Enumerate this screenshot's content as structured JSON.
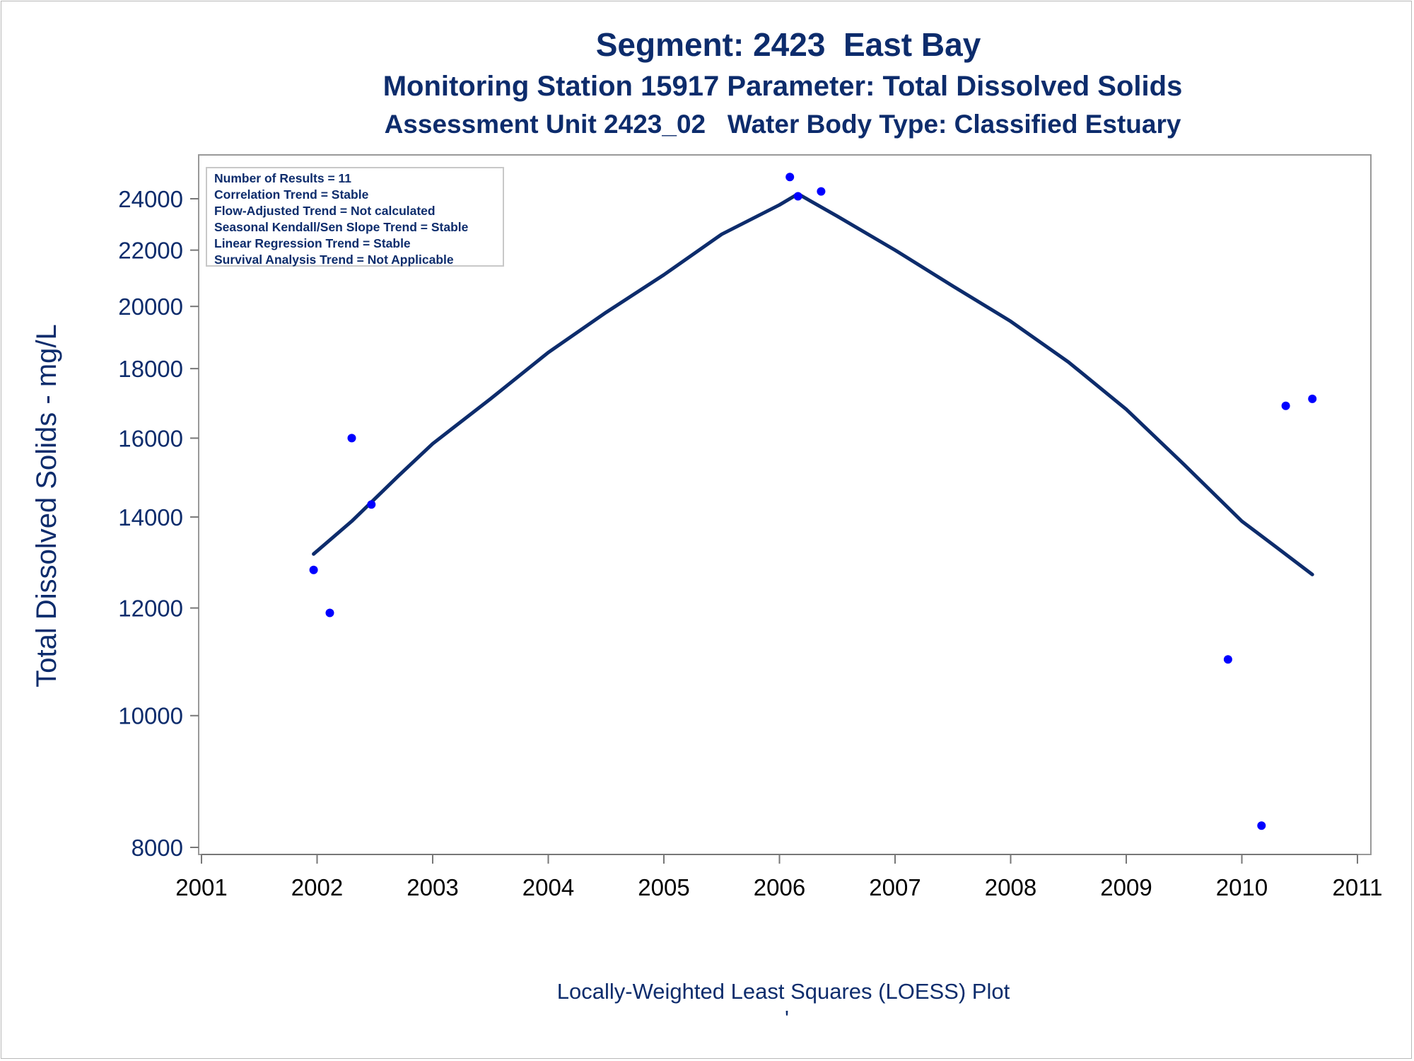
{
  "titles": {
    "line1": "Segment: 2423  East Bay",
    "line2": "Monitoring Station 15917 Parameter: Total Dissolved Solids",
    "line3": "Assessment Unit 2423_02   Water Body Type: Classified Estuary"
  },
  "stats": [
    "Number of Results = 11",
    "Correlation Trend = Stable",
    "Flow-Adjusted Trend = Not calculated",
    "Seasonal Kendall/Sen Slope Trend = Stable",
    "Linear Regression Trend = Stable",
    "Survival Analysis Trend = Not Applicable"
  ],
  "footnote": "Locally-Weighted Least Squares (LOESS) Plot",
  "footnote_mark": "'",
  "colors": {
    "text": "#0d2c6c",
    "points": "#0000ff",
    "loess_line": "#0d2c6c",
    "frame": "#999999"
  },
  "chart_data": {
    "type": "scatter",
    "ylabel": "Total Dissolved Solids - mg/L",
    "xlabel": "",
    "yscale": "log",
    "xlim": [
      2001,
      2011
    ],
    "ylim": [
      7800,
      25500
    ],
    "x_ticks": [
      "2001",
      "2002",
      "2003",
      "2004",
      "2005",
      "2006",
      "2007",
      "2008",
      "2009",
      "2010",
      "2011"
    ],
    "y_ticks": [
      "8000",
      "10000",
      "12000",
      "14000",
      "16000",
      "18000",
      "20000",
      "22000",
      "24000"
    ],
    "series": [
      {
        "kind": "points",
        "x": [
          2001.97,
          2002.11,
          2002.3,
          2002.47,
          2006.09,
          2006.16,
          2006.36,
          2009.88,
          2010.17,
          2010.38,
          2010.61
        ],
        "y": [
          12800,
          11900,
          16000,
          14300,
          24900,
          24100,
          24300,
          11000,
          8300,
          16900,
          17100
        ]
      },
      {
        "kind": "loess-line",
        "x": [
          2001.97,
          2002.3,
          2002.7,
          2003.0,
          2003.5,
          2004.0,
          2004.5,
          2005.0,
          2005.5,
          2006.0,
          2006.16,
          2006.5,
          2007.0,
          2007.5,
          2008.0,
          2008.5,
          2009.0,
          2009.5,
          2010.0,
          2010.3,
          2010.61
        ],
        "y": [
          13150,
          13900,
          15000,
          15850,
          17100,
          18500,
          19800,
          21100,
          22600,
          23750,
          24200,
          23300,
          22000,
          20700,
          19500,
          18200,
          16800,
          15300,
          13900,
          13300,
          12700
        ]
      }
    ]
  }
}
